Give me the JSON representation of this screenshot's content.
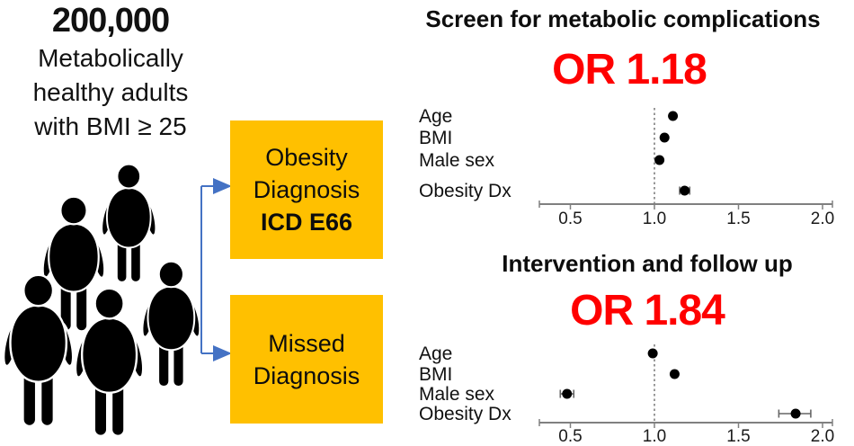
{
  "figure": {
    "population": {
      "count": "200,000",
      "desc_line1": "Metabolically",
      "desc_line2": "healthy adults",
      "desc_line3": "with BMI ≥ 25",
      "icon": "obese-people-group-icon",
      "icon_color": "#000000"
    },
    "flow": {
      "box1": {
        "line1": "Obesity",
        "line2": "Diagnosis",
        "code": "ICD E66"
      },
      "box2": {
        "line1": "Missed",
        "line2": "Diagnosis"
      },
      "box_fill": "#FFC000",
      "arrow_color": "#4472C4"
    }
  },
  "chart_data": [
    {
      "type": "scatter",
      "subtype": "forest-plot",
      "title": "Screen for metabolic complications",
      "or_label": "OR 1.18",
      "or_color": "#FF0000",
      "categories": [
        "Age",
        "BMI",
        "Male sex",
        "Obesity Dx"
      ],
      "values": [
        1.11,
        1.06,
        1.03,
        1.18
      ],
      "ci": [
        null,
        null,
        null,
        [
          1.15,
          1.21
        ]
      ],
      "ref_line": 1.0,
      "xticks": [
        0.5,
        1.0,
        1.5,
        2.0
      ],
      "xtick_labels": [
        "0.5",
        "1.0",
        "1.5",
        "2.0"
      ],
      "xlim": [
        0.3,
        2.1
      ],
      "grid": false,
      "legend": null,
      "marker_color": "#000000",
      "axis_color": "#808080"
    },
    {
      "type": "scatter",
      "subtype": "forest-plot",
      "title": "Intervention and follow up",
      "or_label": "OR 1.84",
      "or_color": "#FF0000",
      "categories": [
        "Age",
        "BMI",
        "Male sex",
        "Obesity Dx"
      ],
      "values": [
        0.99,
        1.12,
        0.48,
        1.84
      ],
      "ci": [
        null,
        null,
        [
          0.44,
          0.52
        ],
        [
          1.74,
          1.93
        ]
      ],
      "ref_line": 1.0,
      "xticks": [
        0.5,
        1.0,
        1.5,
        2.0
      ],
      "xtick_labels": [
        "0.5",
        "1.0",
        "1.5",
        "2.0"
      ],
      "xlim": [
        0.3,
        2.1
      ],
      "grid": false,
      "legend": null,
      "marker_color": "#000000",
      "axis_color": "#808080"
    }
  ]
}
